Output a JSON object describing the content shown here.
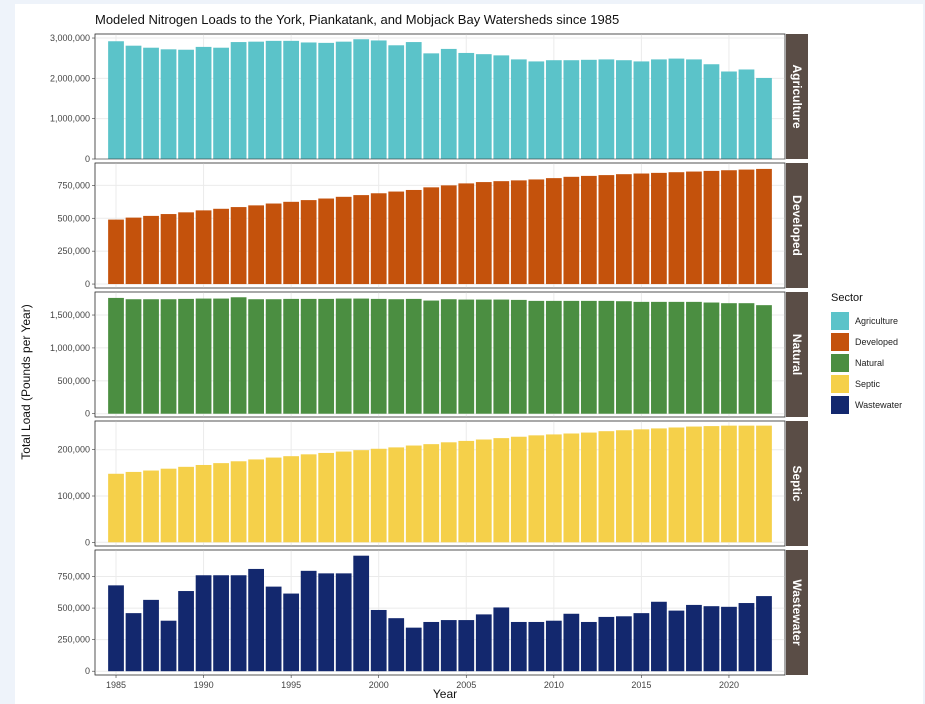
{
  "chart_data": {
    "type": "bar",
    "title": "Modeled Nitrogen Loads to the York, Piankatank, and Mobjack Bay Watersheds since 1985",
    "xlabel": "Year",
    "ylabel": "Total Load (Pounds per Year)",
    "x": [
      1985,
      1986,
      1987,
      1988,
      1989,
      1990,
      1991,
      1992,
      1993,
      1994,
      1995,
      1996,
      1997,
      1998,
      1999,
      2000,
      2001,
      2002,
      2003,
      2004,
      2005,
      2006,
      2007,
      2008,
      2009,
      2010,
      2011,
      2012,
      2013,
      2014,
      2015,
      2016,
      2017,
      2018,
      2019,
      2020,
      2021,
      2022
    ],
    "xticks": [
      1985,
      1990,
      1995,
      2000,
      2005,
      2010,
      2015,
      2020
    ],
    "xlim": [
      1983.8,
      2023.2
    ],
    "grid": true,
    "legend": {
      "title": "Sector",
      "position": "right",
      "entries": [
        "Agriculture",
        "Developed",
        "Natural",
        "Septic",
        "Wastewater"
      ]
    },
    "facets": [
      {
        "name": "Agriculture",
        "color": "#5bc3c9",
        "ylim": [
          0,
          3100000
        ],
        "yticks": [
          0,
          1000000,
          2000000,
          3000000
        ],
        "ytick_labels": [
          "0",
          "1,000,000",
          "2,000,000",
          "3,000,000"
        ],
        "values": [
          2920000,
          2810000,
          2760000,
          2720000,
          2710000,
          2780000,
          2760000,
          2900000,
          2910000,
          2930000,
          2930000,
          2890000,
          2880000,
          2910000,
          2970000,
          2940000,
          2820000,
          2900000,
          2620000,
          2730000,
          2630000,
          2600000,
          2570000,
          2470000,
          2420000,
          2450000,
          2450000,
          2460000,
          2470000,
          2450000,
          2420000,
          2470000,
          2490000,
          2470000,
          2350000,
          2170000,
          2220000,
          2010000
        ]
      },
      {
        "name": "Developed",
        "color": "#c4520c",
        "ylim": [
          -30000,
          920000
        ],
        "yticks": [
          0,
          250000,
          500000,
          750000
        ],
        "ytick_labels": [
          "0",
          "250,000",
          "500,000",
          "750,000"
        ],
        "values": [
          490000,
          505000,
          518000,
          532000,
          545000,
          560000,
          572000,
          585000,
          598000,
          612000,
          625000,
          638000,
          650000,
          663000,
          676000,
          690000,
          703000,
          715000,
          735000,
          750000,
          765000,
          775000,
          782000,
          788000,
          795000,
          805000,
          815000,
          822000,
          828000,
          835000,
          840000,
          845000,
          850000,
          855000,
          860000,
          865000,
          870000,
          875000
        ]
      },
      {
        "name": "Natural",
        "color": "#4b8e41",
        "ylim": [
          -50000,
          1850000
        ],
        "yticks": [
          0,
          500000,
          1000000,
          1500000
        ],
        "ytick_labels": [
          "0",
          "500,000",
          "1,000,000",
          "1,500,000"
        ],
        "values": [
          1760000,
          1740000,
          1740000,
          1740000,
          1745000,
          1750000,
          1750000,
          1770000,
          1740000,
          1740000,
          1745000,
          1745000,
          1745000,
          1750000,
          1750000,
          1745000,
          1740000,
          1745000,
          1720000,
          1740000,
          1735000,
          1735000,
          1735000,
          1730000,
          1715000,
          1715000,
          1715000,
          1715000,
          1715000,
          1710000,
          1700000,
          1700000,
          1700000,
          1700000,
          1690000,
          1680000,
          1680000,
          1650000
        ]
      },
      {
        "name": "Septic",
        "color": "#f5d04a",
        "ylim": [
          -8000,
          262000
        ],
        "yticks": [
          0,
          100000,
          200000
        ],
        "ytick_labels": [
          "0",
          "100,000",
          "200,000"
        ],
        "values": [
          148000,
          152000,
          155000,
          159000,
          163000,
          167000,
          171000,
          175000,
          179000,
          183000,
          186000,
          190000,
          193000,
          196000,
          199000,
          202000,
          205000,
          209000,
          212000,
          216000,
          219000,
          222000,
          225000,
          228000,
          231000,
          233000,
          235000,
          237000,
          240000,
          242000,
          244000,
          246000,
          248000,
          250000,
          251000,
          252000,
          252000,
          252000
        ]
      },
      {
        "name": "Wastewater",
        "color": "#13286e",
        "ylim": [
          -30000,
          960000
        ],
        "yticks": [
          0,
          250000,
          500000,
          750000
        ],
        "ytick_labels": [
          "0",
          "250,000",
          "500,000",
          "750,000"
        ],
        "values": [
          680000,
          460000,
          565000,
          400000,
          635000,
          760000,
          760000,
          760000,
          810000,
          670000,
          615000,
          795000,
          775000,
          775000,
          915000,
          485000,
          420000,
          345000,
          390000,
          405000,
          405000,
          450000,
          505000,
          390000,
          390000,
          400000,
          455000,
          390000,
          430000,
          435000,
          460000,
          550000,
          480000,
          525000,
          515000,
          510000,
          540000,
          595000
        ]
      }
    ]
  }
}
